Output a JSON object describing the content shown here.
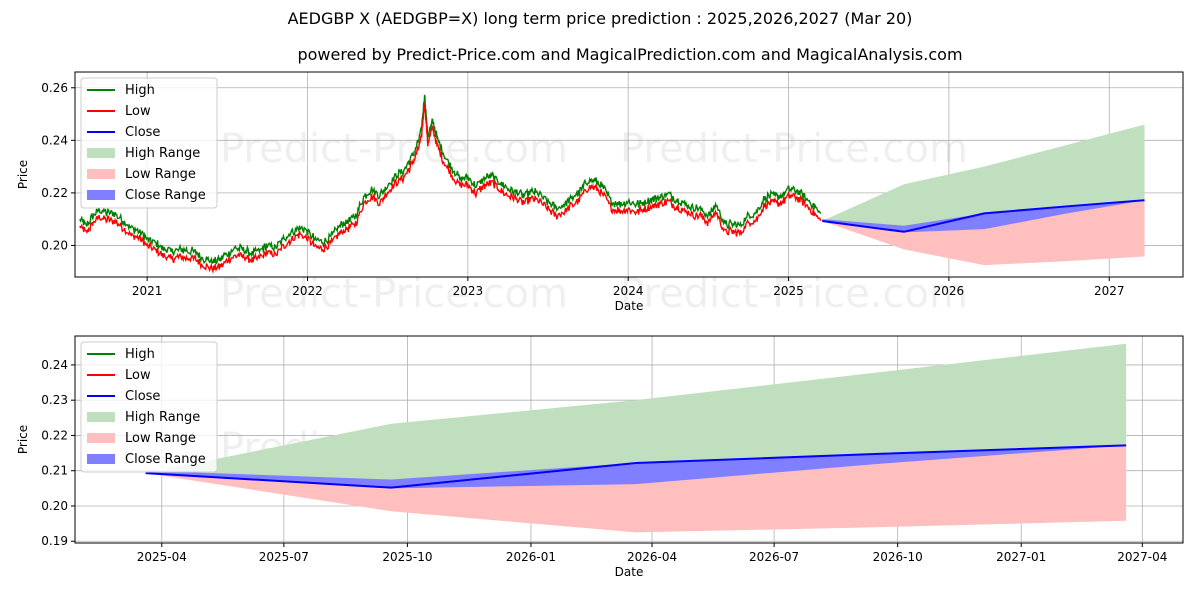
{
  "title": "AEDGBP X (AEDGBP=X) long term price prediction : 2025,2026,2027 (Mar 20)",
  "subtitle": "powered by Predict-Price.com and MagicalPrediction.com and MagicalAnalysis.com",
  "watermark": "Predict-Price.com",
  "colors": {
    "high": "#008000",
    "low": "#ff0000",
    "close": "#0000ff",
    "high_range": "#bfdfbf",
    "low_range": "#ffbfbf",
    "close_range": "#7f7fff",
    "grid": "#b0b0b0"
  },
  "legend": {
    "location": "upper-left",
    "items": [
      {
        "label": "High",
        "kind": "line",
        "color_key": "high"
      },
      {
        "label": "Low",
        "kind": "line",
        "color_key": "low"
      },
      {
        "label": "Close",
        "kind": "line",
        "color_key": "close"
      },
      {
        "label": "High Range",
        "kind": "patch",
        "color_key": "high_range"
      },
      {
        "label": "Low Range",
        "kind": "patch",
        "color_key": "low_range"
      },
      {
        "label": "Close Range",
        "kind": "patch",
        "color_key": "close_range"
      }
    ]
  },
  "chart_data": [
    {
      "type": "line",
      "name": "full-history",
      "xlabel": "Date",
      "ylabel": "Price",
      "xlim": [
        2020.55,
        2027.46
      ],
      "ylim": [
        0.188,
        0.266
      ],
      "yticks": [
        0.2,
        0.22,
        0.24,
        0.26
      ],
      "ytick_labels": [
        "0.20",
        "0.22",
        "0.24",
        "0.26"
      ],
      "xticks": [
        2021.0,
        2022.0,
        2023.0,
        2024.0,
        2025.0,
        2026.0,
        2027.0
      ],
      "xtick_labels": [
        "2021",
        "2022",
        "2023",
        "2024",
        "2025",
        "2026",
        "2027"
      ],
      "grid": true,
      "history_close": [
        [
          2020.58,
          0.2085
        ],
        [
          2020.62,
          0.206
        ],
        [
          2020.66,
          0.2095
        ],
        [
          2020.7,
          0.212
        ],
        [
          2020.75,
          0.211
        ],
        [
          2020.8,
          0.2105
        ],
        [
          2020.85,
          0.208
        ],
        [
          2020.9,
          0.205
        ],
        [
          2020.95,
          0.204
        ],
        [
          2021.0,
          0.201
        ],
        [
          2021.05,
          0.1995
        ],
        [
          2021.1,
          0.1975
        ],
        [
          2021.15,
          0.196
        ],
        [
          2021.2,
          0.197
        ],
        [
          2021.25,
          0.1965
        ],
        [
          2021.3,
          0.196
        ],
        [
          2021.35,
          0.1935
        ],
        [
          2021.4,
          0.1925
        ],
        [
          2021.45,
          0.193
        ],
        [
          2021.5,
          0.1955
        ],
        [
          2021.55,
          0.1975
        ],
        [
          2021.6,
          0.197
        ],
        [
          2021.65,
          0.1955
        ],
        [
          2021.7,
          0.1965
        ],
        [
          2021.75,
          0.1985
        ],
        [
          2021.8,
          0.1975
        ],
        [
          2021.85,
          0.201
        ],
        [
          2021.9,
          0.2035
        ],
        [
          2021.95,
          0.2055
        ],
        [
          2022.0,
          0.204
        ],
        [
          2022.05,
          0.2005
        ],
        [
          2022.1,
          0.2
        ],
        [
          2022.15,
          0.202
        ],
        [
          2022.2,
          0.206
        ],
        [
          2022.25,
          0.2075
        ],
        [
          2022.3,
          0.2095
        ],
        [
          2022.35,
          0.217
        ],
        [
          2022.4,
          0.22
        ],
        [
          2022.45,
          0.2175
        ],
        [
          2022.5,
          0.2215
        ],
        [
          2022.55,
          0.225
        ],
        [
          2022.6,
          0.227
        ],
        [
          2022.65,
          0.232
        ],
        [
          2022.68,
          0.236
        ],
        [
          2022.71,
          0.242
        ],
        [
          2022.73,
          0.256
        ],
        [
          2022.75,
          0.24
        ],
        [
          2022.78,
          0.246
        ],
        [
          2022.81,
          0.239
        ],
        [
          2022.85,
          0.233
        ],
        [
          2022.9,
          0.228
        ],
        [
          2022.95,
          0.224
        ],
        [
          2023.0,
          0.2245
        ],
        [
          2023.05,
          0.221
        ],
        [
          2023.1,
          0.224
        ],
        [
          2023.15,
          0.225
        ],
        [
          2023.2,
          0.2225
        ],
        [
          2023.25,
          0.22
        ],
        [
          2023.3,
          0.219
        ],
        [
          2023.35,
          0.2175
        ],
        [
          2023.4,
          0.219
        ],
        [
          2023.45,
          0.218
        ],
        [
          2023.5,
          0.215
        ],
        [
          2023.55,
          0.2125
        ],
        [
          2023.6,
          0.214
        ],
        [
          2023.65,
          0.2165
        ],
        [
          2023.7,
          0.219
        ],
        [
          2023.75,
          0.2235
        ],
        [
          2023.8,
          0.223
        ],
        [
          2023.85,
          0.22
        ],
        [
          2023.9,
          0.215
        ],
        [
          2023.95,
          0.2145
        ],
        [
          2024.0,
          0.215
        ],
        [
          2024.05,
          0.214
        ],
        [
          2024.1,
          0.215
        ],
        [
          2024.15,
          0.216
        ],
        [
          2024.2,
          0.217
        ],
        [
          2024.25,
          0.218
        ],
        [
          2024.3,
          0.216
        ],
        [
          2024.35,
          0.2145
        ],
        [
          2024.4,
          0.213
        ],
        [
          2024.45,
          0.2125
        ],
        [
          2024.5,
          0.21
        ],
        [
          2024.55,
          0.214
        ],
        [
          2024.6,
          0.2065
        ],
        [
          2024.65,
          0.2065
        ],
        [
          2024.7,
          0.206
        ],
        [
          2024.75,
          0.21
        ],
        [
          2024.8,
          0.211
        ],
        [
          2024.85,
          0.2165
        ],
        [
          2024.9,
          0.2175
        ],
        [
          2024.95,
          0.217
        ],
        [
          2025.0,
          0.22
        ],
        [
          2025.05,
          0.2195
        ],
        [
          2025.1,
          0.217
        ],
        [
          2025.15,
          0.214
        ],
        [
          2025.2,
          0.2105
        ]
      ],
      "forecast": {
        "dates": [
          2025.21,
          2025.72,
          2026.22,
          2026.72,
          2027.22
        ],
        "close": [
          0.2093,
          0.2052,
          0.2122,
          0.2148,
          0.2172
        ],
        "high_range_upper": [
          0.2093,
          0.2233,
          0.23,
          0.238,
          0.246
        ],
        "low_range_lower": [
          0.2093,
          0.1985,
          0.1925,
          0.194,
          0.1958
        ],
        "close_range_upper": [
          0.21,
          0.2075,
          0.2122,
          0.2148,
          0.2172
        ],
        "close_range_lower": [
          0.2093,
          0.205,
          0.2062,
          0.212,
          0.2172
        ]
      }
    },
    {
      "type": "area",
      "name": "forecast-zoom",
      "xlabel": "Date",
      "ylabel": "Price",
      "xlim": [
        2025.07,
        2027.33
      ],
      "ylim": [
        0.1895,
        0.2482
      ],
      "yticks": [
        0.19,
        0.2,
        0.21,
        0.22,
        0.23,
        0.24
      ],
      "ytick_labels": [
        "0.19",
        "0.20",
        "0.21",
        "0.22",
        "0.23",
        "0.24"
      ],
      "xticks": [
        2025.247,
        2025.496,
        2025.748,
        2026.0,
        2026.247,
        2026.496,
        2026.748,
        2027.0,
        2027.247
      ],
      "xtick_labels": [
        "2025-04",
        "2025-07",
        "2025-10",
        "2026-01",
        "2026-04",
        "2026-07",
        "2026-10",
        "2027-01",
        "2027-04"
      ],
      "grid": true,
      "forecast": {
        "dates": [
          2025.214,
          2025.715,
          2026.214,
          2026.715,
          2027.214
        ],
        "close": [
          0.2093,
          0.2052,
          0.2122,
          0.2148,
          0.2172
        ],
        "high_range_upper": [
          0.2093,
          0.2233,
          0.23,
          0.238,
          0.246
        ],
        "low_range_lower": [
          0.2093,
          0.1985,
          0.1925,
          0.194,
          0.1958
        ],
        "close_range_upper": [
          0.21,
          0.2075,
          0.2122,
          0.2148,
          0.2172
        ],
        "close_range_lower": [
          0.2093,
          0.205,
          0.2062,
          0.212,
          0.2172
        ]
      }
    }
  ]
}
